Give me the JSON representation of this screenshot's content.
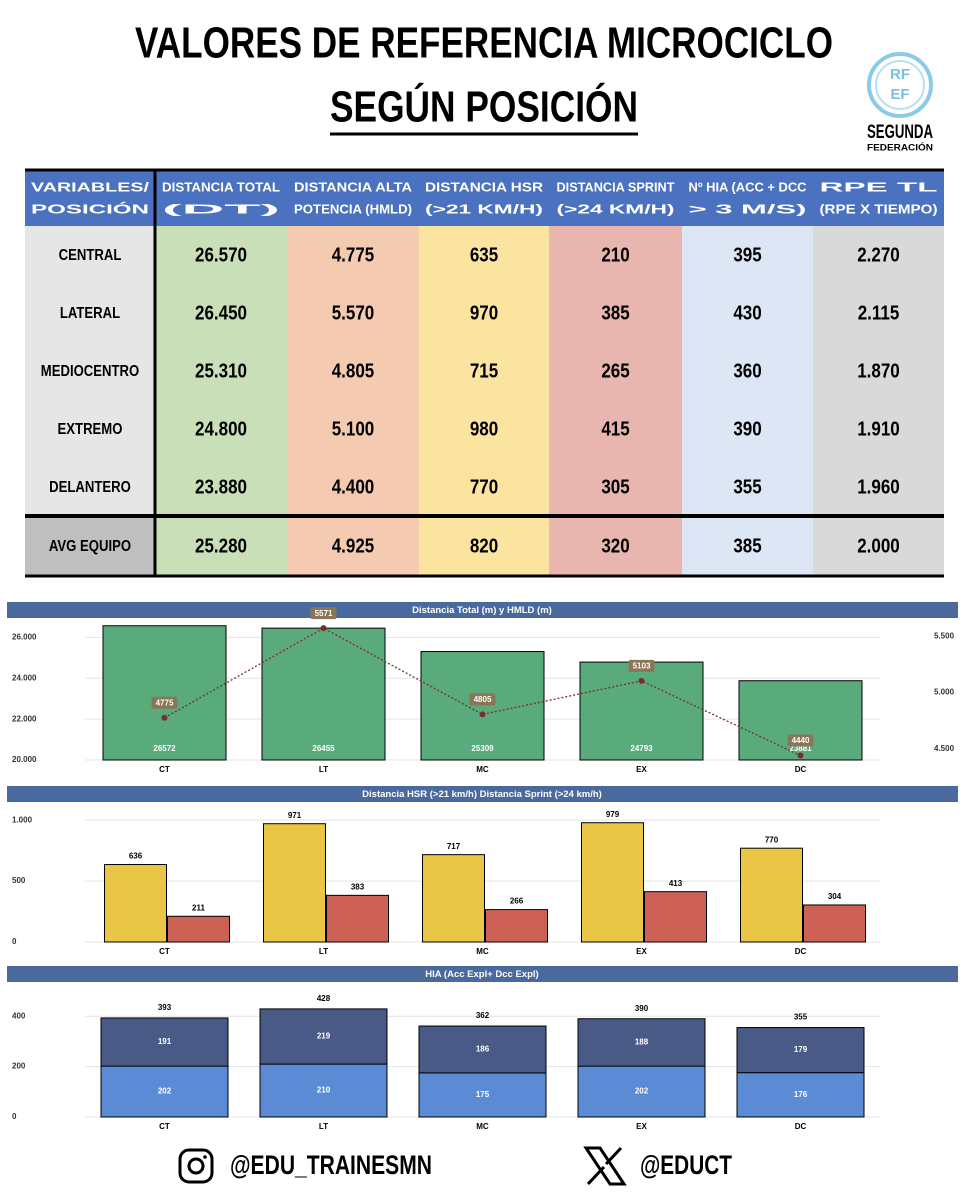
{
  "header": {
    "title": "VALORES DE REFERENCIA MICROCICLO",
    "subtitle": "SEGÚN POSICIÓN",
    "logo": {
      "mark": [
        "RF",
        "EF"
      ],
      "name": "SEGUNDA",
      "sub": "FEDERACIÓN"
    }
  },
  "table": {
    "header": [
      [
        "VARIABLES/",
        "POSICIÓN"
      ],
      [
        "DISTANCIA TOTAL",
        "(DT)"
      ],
      [
        "DISTANCIA ALTA",
        "POTENCIA (HMLD)"
      ],
      [
        "DISTANCIA HSR",
        "(>21 KM/H)"
      ],
      [
        "DISTANCIA SPRINT",
        "(>24 KM/H)"
      ],
      [
        "Nº HIA (ACC + DCC",
        "> 3 M/S)"
      ],
      [
        "RPE TL",
        "(RPE X TIEMPO)"
      ]
    ],
    "rows": [
      [
        "CENTRAL",
        "26.570",
        "4.775",
        "635",
        "210",
        "395",
        "2.270"
      ],
      [
        "LATERAL",
        "26.450",
        "5.570",
        "970",
        "385",
        "430",
        "2.115"
      ],
      [
        "MEDIOCENTRO",
        "25.310",
        "4.805",
        "715",
        "265",
        "360",
        "1.870"
      ],
      [
        "EXTREMO",
        "24.800",
        "5.100",
        "980",
        "415",
        "390",
        "1.910"
      ],
      [
        "DELANTERO",
        "23.880",
        "4.400",
        "770",
        "305",
        "355",
        "1.960"
      ],
      [
        "AVG EQUIPO",
        "25.280",
        "4.925",
        "820",
        "320",
        "385",
        "2.000"
      ]
    ]
  },
  "chart_data": [
    {
      "type": "combo",
      "title": "Distancia Total (m) y HMLD (m)",
      "categories": [
        "CT",
        "LT",
        "MC",
        "EX",
        "DC"
      ],
      "series": [
        {
          "color": "#5aab7c",
          "values": [
            26572,
            26455,
            25309,
            24793,
            23881
          ]
        },
        {
          "color": "#7a2e2a",
          "axis": "y2",
          "values": [
            4775,
            5571,
            4805,
            5103,
            4440
          ]
        }
      ],
      "ylim": [
        20000,
        27000
      ],
      "yticks": [
        {
          "value": 20000,
          "label": "20.000"
        },
        {
          "value": 22000,
          "label": "22.000"
        },
        {
          "value": 24000,
          "label": "24.000"
        },
        {
          "value": 26000,
          "label": "26.000"
        }
      ],
      "y2lim": [
        4400,
        5670
      ],
      "y2ticks": [
        {
          "value": 4500,
          "label": "4.500"
        },
        {
          "value": 5000,
          "label": "5.000"
        },
        {
          "value": 5500,
          "label": "5.500"
        }
      ],
      "grid": true
    },
    {
      "type": "bar",
      "title": "Distancia HSR (>21 km/h) Distancia Sprint (>24 km/h)",
      "categories": [
        "CT",
        "LT",
        "MC",
        "EX",
        "DC"
      ],
      "series": [
        {
          "color": "#e9c645",
          "values": [
            636,
            971,
            717,
            979,
            770
          ]
        },
        {
          "color": "#cd6155",
          "values": [
            211,
            383,
            266,
            413,
            304
          ]
        }
      ],
      "ylim": [
        0,
        1100
      ],
      "yticks": [
        0,
        500,
        {
          "value": 1000,
          "label": "1.000"
        }
      ],
      "grid": true
    },
    {
      "type": "stacked_bar",
      "title": "HIA (Acc Expl+ Dcc Expl)",
      "categories": [
        "CT",
        "LT",
        "MC",
        "EX",
        "DC"
      ],
      "series": [
        {
          "color": "#5b8bd4",
          "values": [
            202,
            210,
            175,
            202,
            176
          ]
        },
        {
          "color": "#4a5a86",
          "values": [
            191,
            219,
            186,
            188,
            179
          ]
        }
      ],
      "totals": [
        393,
        428,
        362,
        390,
        355
      ],
      "ylim": [
        0,
        500
      ],
      "yticks": [
        0,
        200,
        400
      ],
      "grid": true
    }
  ],
  "footer": {
    "instagram": "@EDU_TRAINESMN",
    "x": "@EDUCT"
  }
}
